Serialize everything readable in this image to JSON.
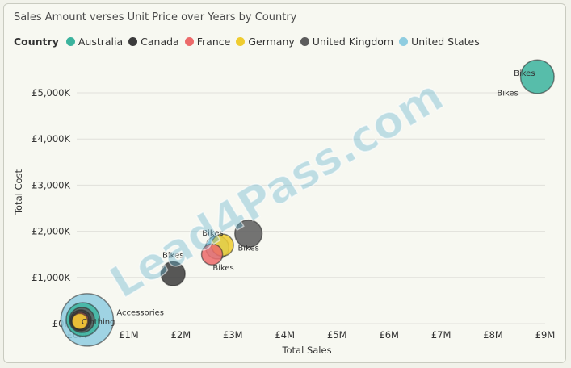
{
  "chart_data": {
    "type": "scatter",
    "title": "Sales Amount verses Unit Price over Years by Country",
    "legend": {
      "title": "Country",
      "placement": "top-left",
      "entries": [
        {
          "name": "Australia",
          "color": "#3bb39d"
        },
        {
          "name": "Canada",
          "color": "#3b3b3b"
        },
        {
          "name": "France",
          "color": "#ec6a6a"
        },
        {
          "name": "Germany",
          "color": "#efcc2f"
        },
        {
          "name": "United Kingdom",
          "color": "#5c5c5c"
        },
        {
          "name": "United States",
          "color": "#8fcde0"
        }
      ]
    },
    "xlabel": "Total Sales",
    "ylabel": "Total Cost",
    "xlim": [
      0,
      9
    ],
    "ylim": [
      0,
      5700
    ],
    "x_ticks": [
      {
        "value": 0,
        "label": "£0M"
      },
      {
        "value": 1,
        "label": "£1M"
      },
      {
        "value": 2,
        "label": "£2M"
      },
      {
        "value": 3,
        "label": "£3M"
      },
      {
        "value": 4,
        "label": "£4M"
      },
      {
        "value": 5,
        "label": "£5M"
      },
      {
        "value": 6,
        "label": "£6M"
      },
      {
        "value": 7,
        "label": "£7M"
      },
      {
        "value": 8,
        "label": "£8M"
      },
      {
        "value": 9,
        "label": "£9M"
      }
    ],
    "y_ticks": [
      {
        "value": 0,
        "label": "£0K"
      },
      {
        "value": 1000,
        "label": "£1,000K"
      },
      {
        "value": 2000,
        "label": "£2,000K"
      },
      {
        "value": 3000,
        "label": "£3,000K"
      },
      {
        "value": 4000,
        "label": "£4,000K"
      },
      {
        "value": 5000,
        "label": "£5,000K"
      }
    ],
    "grid": true,
    "series": [
      {
        "name": "United States",
        "color": "#8fcde0",
        "points": [
          {
            "x": 0.2,
            "y": 80,
            "size": 5,
            "label": "Accessories"
          },
          {
            "x": 2.7,
            "y": 1650,
            "size": 2.2,
            "label": ""
          }
        ]
      },
      {
        "name": "Australia",
        "color": "#3bb39d",
        "points": [
          {
            "x": 8.85,
            "y": 5350,
            "size": 3.2,
            "label": "Bikes"
          },
          {
            "x": 0.12,
            "y": 90,
            "size": 3.2,
            "label": ""
          }
        ]
      },
      {
        "name": "United Kingdom",
        "color": "#5c5c5c",
        "points": [
          {
            "x": 3.3,
            "y": 1950,
            "size": 2.6,
            "label": "Bikes"
          },
          {
            "x": 0.1,
            "y": 80,
            "size": 2.4,
            "label": ""
          }
        ]
      },
      {
        "name": "Canada",
        "color": "#3b3b3b",
        "points": [
          {
            "x": 1.85,
            "y": 1080,
            "size": 2.3,
            "label": "Bikes"
          },
          {
            "x": 0.08,
            "y": 70,
            "size": 2.0,
            "label": ""
          }
        ]
      },
      {
        "name": "France",
        "color": "#ec6a6a",
        "points": [
          {
            "x": 2.6,
            "y": 1500,
            "size": 2.0,
            "label": "Bikes"
          },
          {
            "x": 0.07,
            "y": 60,
            "size": 1.6,
            "label": ""
          }
        ]
      },
      {
        "name": "Germany",
        "color": "#efcc2f",
        "points": [
          {
            "x": 2.8,
            "y": 1700,
            "size": 2.1,
            "label": "Bikes"
          },
          {
            "x": 0.06,
            "y": 50,
            "size": 1.5,
            "label": "Clothing"
          }
        ]
      }
    ],
    "extra_labels": [
      {
        "text": "Bikes",
        "x": 8.0,
        "y": 4940
      }
    ],
    "watermark": "Lead4Pass.com"
  }
}
